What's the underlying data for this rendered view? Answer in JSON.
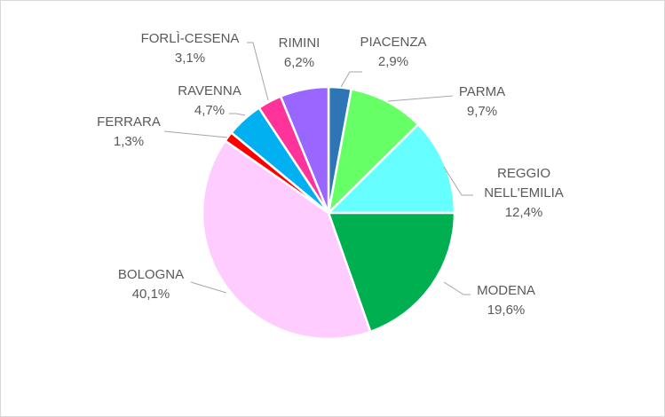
{
  "chart_data": {
    "type": "pie",
    "title": "",
    "categories": [
      "PIACENZA",
      "PARMA",
      "REGGIO NELL'EMILIA",
      "MODENA",
      "BOLOGNA",
      "FERRARA",
      "RAVENNA",
      "FORLÌ-CESENA",
      "RIMINI"
    ],
    "values": [
      2.9,
      9.7,
      12.4,
      19.6,
      40.1,
      1.3,
      4.7,
      3.1,
      6.2
    ],
    "value_labels": [
      "2,9%",
      "9,7%",
      "12,4%",
      "19,6%",
      "40,1%",
      "1,3%",
      "4,7%",
      "3,1%",
      "6,2%"
    ],
    "label_lines": [
      [
        "PIACENZA"
      ],
      [
        "PARMA"
      ],
      [
        "REGGIO",
        "NELL'EMILIA"
      ],
      [
        "MODENA"
      ],
      [
        "BOLOGNA"
      ],
      [
        "FERRARA"
      ],
      [
        "RAVENNA"
      ],
      [
        "FORLÌ-CESENA"
      ],
      [
        "RIMINI"
      ]
    ],
    "colors": [
      "#2e75b6",
      "#66ff66",
      "#66ffff",
      "#00b050",
      "#ffccff",
      "#ff0000",
      "#00b0f0",
      "#ff3399",
      "#9966ff"
    ],
    "legend": "none",
    "start": "12 o'clock, clockwise"
  }
}
